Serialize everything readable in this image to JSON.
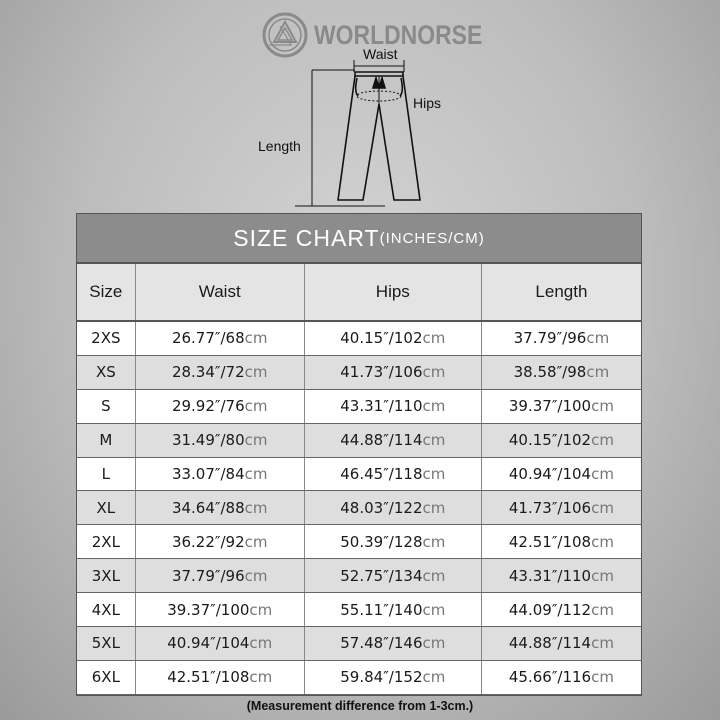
{
  "brand": {
    "name": "WORLDNORSE"
  },
  "diagram": {
    "waist_label": "Waist",
    "hips_label": "Hips",
    "length_label": "Length"
  },
  "table": {
    "title": "SIZE CHART",
    "title_units": "(INCHES/CM)",
    "headers": [
      "Size",
      "Waist",
      "Hips",
      "Length"
    ],
    "unit": "cm",
    "rows": [
      {
        "size": "2XS",
        "waist": "26.77″/68",
        "hips": "40.15″/102",
        "length": "37.79″/96"
      },
      {
        "size": "XS",
        "waist": "28.34″/72",
        "hips": "41.73″/106",
        "length": "38.58″/98"
      },
      {
        "size": "S",
        "waist": "29.92″/76",
        "hips": "43.31″/110",
        "length": "39.37″/100"
      },
      {
        "size": "M",
        "waist": "31.49″/80",
        "hips": "44.88″/114",
        "length": "40.15″/102"
      },
      {
        "size": "L",
        "waist": "33.07″/84",
        "hips": "46.45″/118",
        "length": "40.94″/104"
      },
      {
        "size": "XL",
        "waist": "34.64″/88",
        "hips": "48.03″/122",
        "length": "41.73″/106"
      },
      {
        "size": "2XL",
        "waist": "36.22″/92",
        "hips": "50.39″/128",
        "length": "42.51″/108"
      },
      {
        "size": "3XL",
        "waist": "37.79″/96",
        "hips": "52.75″/134",
        "length": "43.31″/110"
      },
      {
        "size": "4XL",
        "waist": "39.37″/100",
        "hips": "55.11″/140",
        "length": "44.09″/112"
      },
      {
        "size": "5XL",
        "waist": "40.94″/104",
        "hips": "57.48″/146",
        "length": "44.88″/114"
      },
      {
        "size": "6XL",
        "waist": "42.51″/108",
        "hips": "59.84″/152",
        "length": "45.66″/116"
      }
    ]
  },
  "note": "(Measurement difference from 1-3cm.)",
  "colors": {
    "title_band": "#8c8c8c",
    "header_row": "#e4e4e4",
    "alt_row": "#dedede",
    "unit_text": "#777777"
  }
}
